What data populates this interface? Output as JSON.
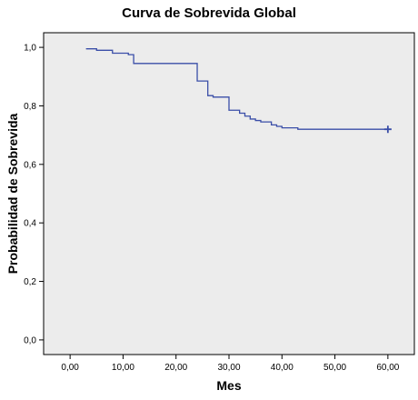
{
  "chart_data": {
    "type": "line",
    "title": "Curva de Sobrevida Global",
    "xlabel": "Mes",
    "ylabel": "Probabilidad de Sobrevida",
    "xlim": [
      -5,
      65
    ],
    "ylim": [
      -0.05,
      1.05
    ],
    "xticks": [
      "0,00",
      "10,00",
      "20,00",
      "30,00",
      "40,00",
      "50,00",
      "60,00"
    ],
    "xtick_values": [
      0,
      10,
      20,
      30,
      40,
      50,
      60
    ],
    "yticks": [
      "0,0",
      "0,2",
      "0,4",
      "0,6",
      "0,8",
      "1,0"
    ],
    "ytick_values": [
      0,
      0.2,
      0.4,
      0.6,
      0.8,
      1.0
    ],
    "grid": false,
    "background_color": "#ececec",
    "line_color": "#3a4ea8",
    "step_points": [
      [
        3,
        0.995
      ],
      [
        5,
        0.99
      ],
      [
        8,
        0.98
      ],
      [
        11,
        0.975
      ],
      [
        12,
        0.945
      ],
      [
        24,
        0.885
      ],
      [
        26,
        0.835
      ],
      [
        27,
        0.83
      ],
      [
        30,
        0.785
      ],
      [
        32,
        0.775
      ],
      [
        33,
        0.765
      ],
      [
        34,
        0.755
      ],
      [
        35,
        0.75
      ],
      [
        36,
        0.745
      ],
      [
        38,
        0.735
      ],
      [
        39,
        0.73
      ],
      [
        40,
        0.725
      ],
      [
        43,
        0.72
      ],
      [
        60,
        0.72
      ]
    ],
    "censored": [
      [
        60,
        0.72
      ]
    ]
  }
}
